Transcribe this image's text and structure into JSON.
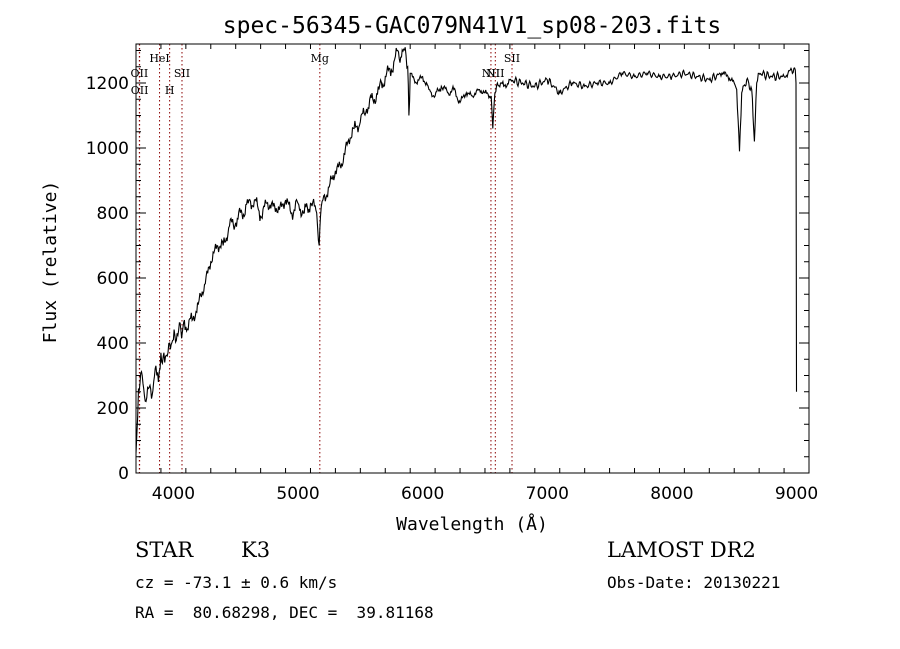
{
  "chart_data": {
    "type": "line",
    "title": "spec-56345-GAC079N41V1_sp08-203.fits",
    "xlabel": "Wavelength (Å)",
    "ylabel": "Flux (relative)",
    "xlim": [
      3700,
      9100
    ],
    "ylim": [
      0,
      1320
    ],
    "xticks": [
      4000,
      5000,
      6000,
      7000,
      8000,
      9000
    ],
    "yticks": [
      0,
      200,
      400,
      600,
      800,
      1000,
      1200
    ],
    "grid": false,
    "line_color": "#000000",
    "marker_color": "#8b0000",
    "series": [
      {
        "x": [
          3700,
          3720,
          3750,
          3780,
          3800,
          3830,
          3860,
          3880,
          3900,
          3930,
          3950,
          3970,
          4000,
          4030,
          4060,
          4100,
          4150,
          4200,
          4250,
          4300,
          4350,
          4400,
          4450,
          4500,
          4550,
          4600,
          4650,
          4700,
          4750,
          4800,
          4850,
          4900,
          4950,
          5000,
          5050,
          5100,
          5150,
          5170,
          5180,
          5200,
          5250,
          5300,
          5350,
          5400,
          5450,
          5500,
          5550,
          5600,
          5650,
          5700,
          5750,
          5800,
          5830,
          5860,
          5880,
          5890,
          5900,
          5950,
          6000,
          6050,
          6100,
          6150,
          6200,
          6250,
          6300,
          6350,
          6400,
          6450,
          6500,
          6550,
          6563,
          6580,
          6600,
          6650,
          6700,
          6800,
          6900,
          7000,
          7100,
          7200,
          7300,
          7400,
          7500,
          7600,
          7700,
          7800,
          7900,
          8000,
          8100,
          8200,
          8300,
          8400,
          8450,
          8500,
          8520,
          8542,
          8560,
          8600,
          8640,
          8662,
          8680,
          8700,
          8800,
          8900,
          8950,
          8990,
          8996,
          9000
        ],
        "y": [
          60,
          260,
          300,
          220,
          260,
          240,
          330,
          280,
          370,
          340,
          360,
          400,
          410,
          430,
          440,
          450,
          470,
          520,
          580,
          650,
          700,
          700,
          760,
          770,
          800,
          830,
          840,
          790,
          830,
          820,
          810,
          840,
          800,
          830,
          800,
          830,
          800,
          700,
          790,
          840,
          880,
          930,
          950,
          1020,
          1060,
          1080,
          1120,
          1150,
          1180,
          1220,
          1240,
          1300,
          1280,
          1310,
          1250,
          1100,
          1230,
          1200,
          1220,
          1180,
          1160,
          1190,
          1170,
          1180,
          1140,
          1170,
          1160,
          1180,
          1170,
          1160,
          1060,
          1170,
          1200,
          1190,
          1210,
          1200,
          1190,
          1210,
          1170,
          1200,
          1190,
          1200,
          1200,
          1230,
          1220,
          1230,
          1220,
          1220,
          1230,
          1220,
          1210,
          1230,
          1220,
          1200,
          1180,
          990,
          1170,
          1210,
          1180,
          1020,
          1200,
          1230,
          1220,
          1220,
          1240,
          1240,
          1200,
          250
        ]
      }
    ],
    "lines": [
      {
        "label": "OII",
        "x": 3727,
        "row": 1
      },
      {
        "label": "OII",
        "x": 3729,
        "row": 2
      },
      {
        "label": "HeI",
        "x": 3889,
        "row": 0
      },
      {
        "label": "H",
        "x": 3970,
        "row": 2
      },
      {
        "label": "SII",
        "x": 4069,
        "row": 1
      },
      {
        "label": "Mg",
        "x": 5175,
        "row": 0
      },
      {
        "label": "NII",
        "x": 6548,
        "row": 1
      },
      {
        "label": "NII",
        "x": 6583,
        "row": 1
      },
      {
        "label": "SII",
        "x": 6717,
        "row": 0
      }
    ]
  },
  "info": {
    "object_class": "STAR",
    "subclass": "K3",
    "redshift_line": "cz = -73.1 ± 0.6 km/s",
    "coords_line": "RA =  80.68298, DEC =  39.81168",
    "survey": "LAMOST DR2",
    "obs_date_line": "Obs-Date: 20130221"
  }
}
